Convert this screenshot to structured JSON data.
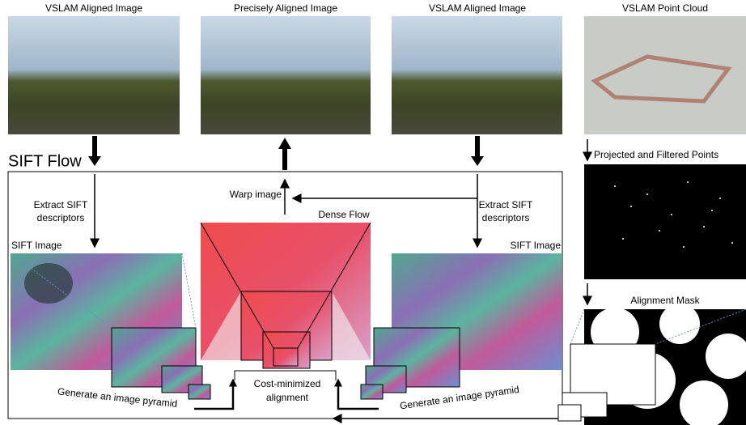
{
  "images": [
    {
      "label": "VSLAM Aligned Image"
    },
    {
      "label": "Precisely Aligned Image"
    },
    {
      "label": "VSLAM Aligned Image"
    },
    {
      "label": "VSLAM Point Cloud"
    }
  ],
  "sift_flow": {
    "title": "SIFT Flow",
    "left_extract": [
      "Extract SIFT",
      "descriptors"
    ],
    "right_extract": [
      "Extract SIFT",
      "descriptors"
    ],
    "warp": "Warp image",
    "dense_flow": "Dense Flow",
    "left_sift_image": "SIFT Image",
    "right_sift_image": "SIFT Image",
    "cost": [
      "Cost-minimized",
      "alignment"
    ],
    "left_pyramid": "Generate an image pyramid",
    "right_pyramid": "Generate an image pyramid"
  },
  "side": {
    "projected": "Projected and Filtered Points",
    "mask": "Alignment Mask"
  }
}
